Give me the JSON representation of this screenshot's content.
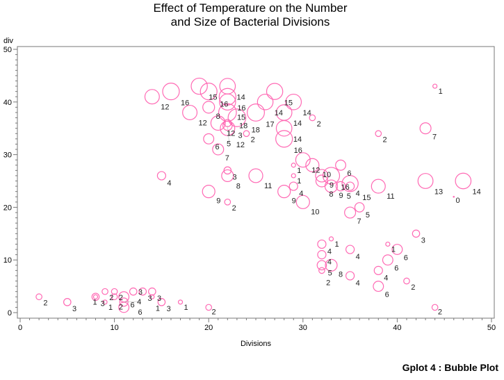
{
  "chart_data": {
    "type": "bubble",
    "title": [
      "Effect of Temperature on the Number",
      "and Size of Bacterial Divisions"
    ],
    "xlabel": "Divisions",
    "ylabel": "div",
    "xlim": [
      0,
      50
    ],
    "ylim": [
      0,
      50
    ],
    "xticks": [
      0,
      10,
      20,
      30,
      40,
      50
    ],
    "yticks": [
      0,
      10,
      20,
      30,
      40,
      50
    ],
    "grid": false,
    "bubble_color": "#ff69b4",
    "points": [
      {
        "x": 14,
        "y": 41,
        "size": 12
      },
      {
        "x": 16,
        "y": 42,
        "size": 16
      },
      {
        "x": 18,
        "y": 38,
        "size": 12
      },
      {
        "x": 19,
        "y": 43,
        "size": 15
      },
      {
        "x": 20,
        "y": 42,
        "size": 16
      },
      {
        "x": 20,
        "y": 39,
        "size": 8
      },
      {
        "x": 21,
        "y": 36,
        "size": 12
      },
      {
        "x": 22,
        "y": 43,
        "size": 14
      },
      {
        "x": 22,
        "y": 41,
        "size": 16
      },
      {
        "x": 22,
        "y": 40,
        "size": 15
      },
      {
        "x": 22,
        "y": 38,
        "size": 18
      },
      {
        "x": 23,
        "y": 37,
        "size": 18
      },
      {
        "x": 22,
        "y": 36,
        "size": 3
      },
      {
        "x": 22,
        "y": 35,
        "size": 12
      },
      {
        "x": 22,
        "y": 35.5,
        "size": 5
      },
      {
        "x": 24,
        "y": 34,
        "size": 2
      },
      {
        "x": 25,
        "y": 38,
        "size": 17
      },
      {
        "x": 26,
        "y": 40,
        "size": 14
      },
      {
        "x": 27,
        "y": 42,
        "size": 15
      },
      {
        "x": 28,
        "y": 38,
        "size": 14
      },
      {
        "x": 28,
        "y": 35,
        "size": 14
      },
      {
        "x": 29,
        "y": 40,
        "size": 14
      },
      {
        "x": 28,
        "y": 33,
        "size": 16
      },
      {
        "x": 31,
        "y": 37,
        "size": 2
      },
      {
        "x": 20,
        "y": 33,
        "size": 6
      },
      {
        "x": 21,
        "y": 31,
        "size": 7
      },
      {
        "x": 22,
        "y": 27,
        "size": 3
      },
      {
        "x": 22,
        "y": 26,
        "size": 8
      },
      {
        "x": 15,
        "y": 26,
        "size": 4
      },
      {
        "x": 20,
        "y": 23,
        "size": 9
      },
      {
        "x": 22,
        "y": 21,
        "size": 2
      },
      {
        "x": 25,
        "y": 26,
        "size": 11
      },
      {
        "x": 28,
        "y": 23,
        "size": 9
      },
      {
        "x": 30,
        "y": 21,
        "size": 10
      },
      {
        "x": 29,
        "y": 28,
        "size": 1
      },
      {
        "x": 30,
        "y": 29,
        "size": 12
      },
      {
        "x": 29,
        "y": 26,
        "size": 1
      },
      {
        "x": 31,
        "y": 28,
        "size": 10
      },
      {
        "x": 32,
        "y": 26,
        "size": 9
      },
      {
        "x": 32,
        "y": 25,
        "size": 8
      },
      {
        "x": 33,
        "y": 26,
        "size": 16
      },
      {
        "x": 34,
        "y": 28,
        "size": 6
      },
      {
        "x": 35,
        "y": 24,
        "size": 4
      },
      {
        "x": 33,
        "y": 24,
        "size": 9
      },
      {
        "x": 34,
        "y": 24,
        "size": 5
      },
      {
        "x": 35,
        "y": 19,
        "size": 7
      },
      {
        "x": 36,
        "y": 20,
        "size": 5
      },
      {
        "x": 35,
        "y": 24.5,
        "size": 15
      },
      {
        "x": 38,
        "y": 24,
        "size": 11
      },
      {
        "x": 38,
        "y": 34,
        "size": 2
      },
      {
        "x": 43,
        "y": 35,
        "size": 7
      },
      {
        "x": 43,
        "y": 25,
        "size": 13
      },
      {
        "x": 47,
        "y": 25,
        "size": 14
      },
      {
        "x": 46,
        "y": 22,
        "size": 0
      },
      {
        "x": 44,
        "y": 43,
        "size": 1
      },
      {
        "x": 29,
        "y": 24,
        "size": 4
      },
      {
        "x": 32,
        "y": 13,
        "size": 4
      },
      {
        "x": 33,
        "y": 14,
        "size": 1
      },
      {
        "x": 32,
        "y": 11,
        "size": 4
      },
      {
        "x": 32,
        "y": 9,
        "size": 5
      },
      {
        "x": 33,
        "y": 9,
        "size": 8
      },
      {
        "x": 32,
        "y": 8,
        "size": 2
      },
      {
        "x": 35,
        "y": 12,
        "size": 4
      },
      {
        "x": 35,
        "y": 7,
        "size": 4
      },
      {
        "x": 38,
        "y": 8,
        "size": 4
      },
      {
        "x": 38,
        "y": 5,
        "size": 6
      },
      {
        "x": 39,
        "y": 10,
        "size": 6
      },
      {
        "x": 40,
        "y": 12,
        "size": 6
      },
      {
        "x": 39,
        "y": 13,
        "size": 1
      },
      {
        "x": 42,
        "y": 15,
        "size": 3
      },
      {
        "x": 41,
        "y": 6,
        "size": 2
      },
      {
        "x": 44,
        "y": 1,
        "size": 2
      },
      {
        "x": 2,
        "y": 3,
        "size": 2
      },
      {
        "x": 5,
        "y": 2,
        "size": 3
      },
      {
        "x": 8,
        "y": 3,
        "size": 3
      },
      {
        "x": 8,
        "y": 3,
        "size": 1
      },
      {
        "x": 9,
        "y": 4,
        "size": 2
      },
      {
        "x": 9,
        "y": 2,
        "size": 1
      },
      {
        "x": 10,
        "y": 4,
        "size": 2
      },
      {
        "x": 10,
        "y": 3,
        "size": 2
      },
      {
        "x": 11,
        "y": 3,
        "size": 6
      },
      {
        "x": 11,
        "y": 1,
        "size": 6
      },
      {
        "x": 11,
        "y": 2,
        "size": 4
      },
      {
        "x": 12,
        "y": 4,
        "size": 3
      },
      {
        "x": 13,
        "y": 4,
        "size": 3
      },
      {
        "x": 14,
        "y": 4,
        "size": 3
      },
      {
        "x": 14,
        "y": 3,
        "size": 1
      },
      {
        "x": 15,
        "y": 2,
        "size": 3
      },
      {
        "x": 17,
        "y": 2,
        "size": 1
      },
      {
        "x": 20,
        "y": 1,
        "size": 2
      }
    ]
  },
  "footer": "Gplot 4 : Bubble Plot"
}
